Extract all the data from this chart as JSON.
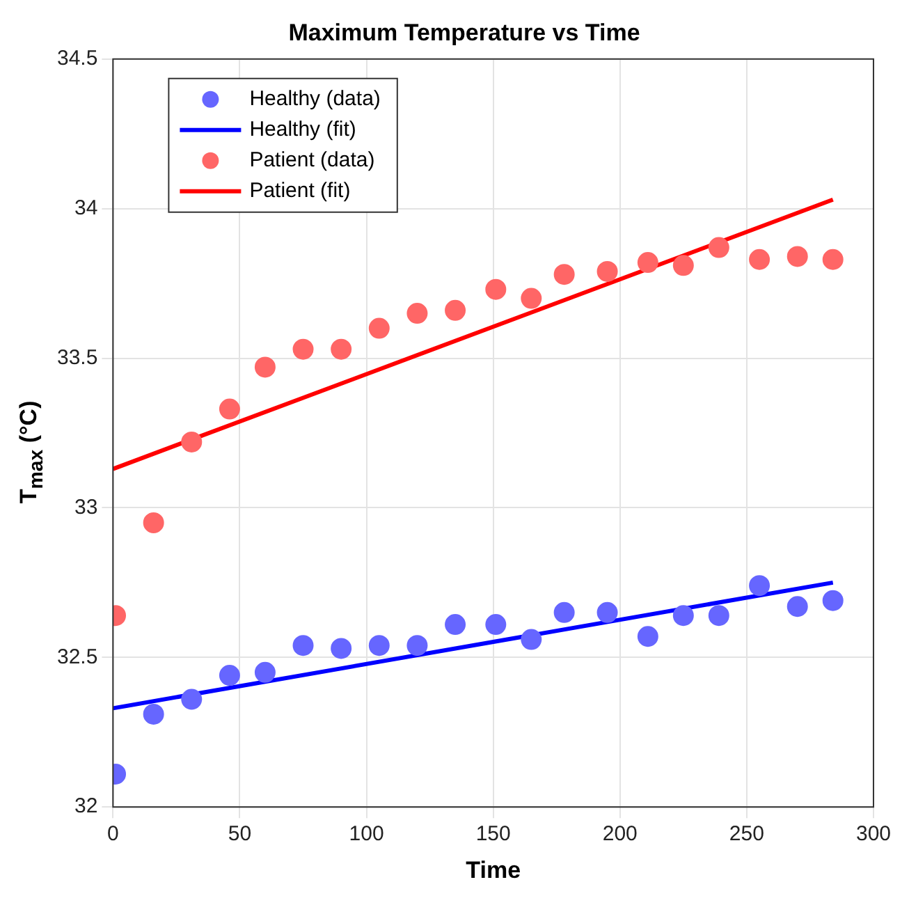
{
  "chart_data": {
    "type": "scatter",
    "title": "Maximum Temperature vs Time",
    "xlabel": "Time",
    "ylabel": "T$_{max}$ (°C)",
    "xlim": [
      0,
      300
    ],
    "xticks": [
      0,
      50,
      100,
      150,
      200,
      250,
      300
    ],
    "ylim": [
      32,
      34.5
    ],
    "yticks": [
      32,
      32.5,
      33,
      33.5,
      34,
      34.5
    ],
    "grid": true,
    "legend": "top left",
    "marker": "circle",
    "series": [
      {
        "name": "Healthy (data)",
        "type": "scatter",
        "color": "#6666ff",
        "x": [
          1,
          16,
          31,
          46,
          60,
          75,
          90,
          105,
          120,
          135,
          151,
          165,
          178,
          195,
          211,
          225,
          239,
          255,
          270,
          284
        ],
        "values": [
          32.11,
          32.31,
          32.36,
          32.44,
          32.45,
          32.54,
          32.53,
          32.54,
          32.54,
          32.61,
          32.61,
          32.56,
          32.65,
          32.65,
          32.57,
          32.64,
          32.64,
          32.74,
          32.67,
          32.69
        ]
      },
      {
        "name": "Healthy (fit)",
        "type": "line",
        "color": "#0000ff",
        "marker": "none",
        "x": [
          0,
          284
        ],
        "values": [
          32.33,
          32.75
        ]
      },
      {
        "name": "Patient (data)",
        "type": "scatter",
        "color": "#ff6666",
        "x": [
          1,
          16,
          31,
          46,
          60,
          75,
          90,
          105,
          120,
          135,
          151,
          165,
          178,
          195,
          211,
          225,
          239,
          255,
          270,
          284
        ],
        "values": [
          32.64,
          32.95,
          33.22,
          33.33,
          33.47,
          33.53,
          33.53,
          33.6,
          33.65,
          33.66,
          33.73,
          33.7,
          33.78,
          33.79,
          33.82,
          33.81,
          33.87,
          33.83,
          33.84,
          33.83
        ]
      },
      {
        "name": "Patient (fit)",
        "type": "line",
        "color": "#ff0000",
        "marker": "none",
        "x": [
          0,
          284
        ],
        "values": [
          33.13,
          34.03
        ]
      }
    ]
  }
}
